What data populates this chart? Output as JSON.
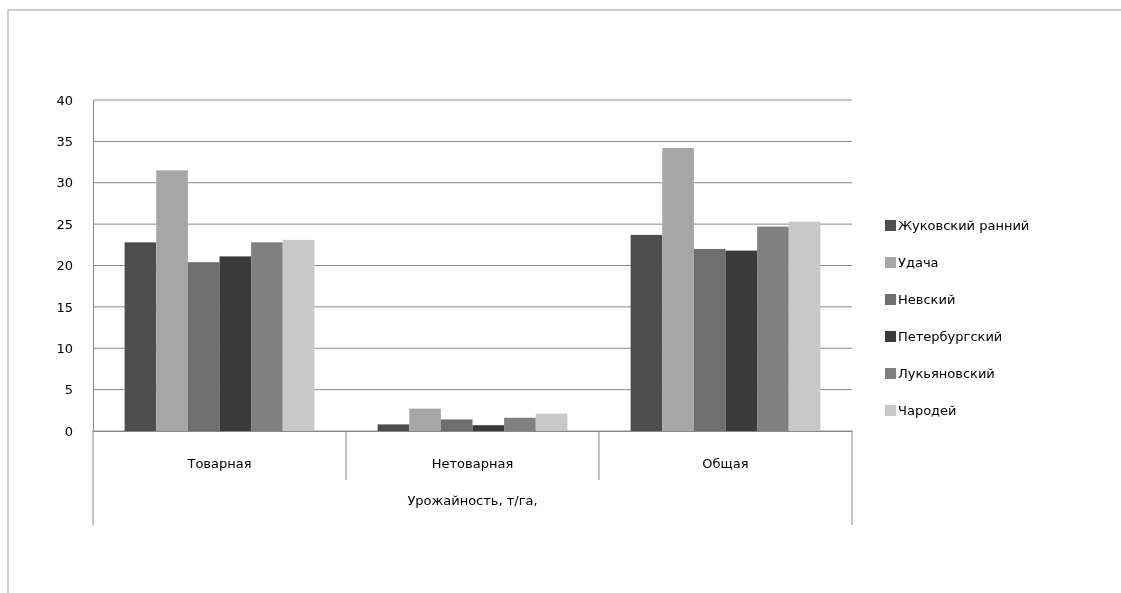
{
  "chart_data": {
    "type": "bar",
    "xlabel": "Урожайность, т/га,",
    "categories": [
      "Товарная",
      "Нетоварная",
      "Общая"
    ],
    "series": [
      {
        "name": "Жуковский ранний",
        "color": "#4d4d4d",
        "values": [
          22.8,
          0.8,
          23.7
        ]
      },
      {
        "name": "Удача",
        "color": "#a6a6a6",
        "values": [
          31.5,
          2.7,
          34.2
        ]
      },
      {
        "name": "Невский",
        "color": "#6e6e6e",
        "values": [
          20.4,
          1.4,
          22.0
        ]
      },
      {
        "name": "Петербургский",
        "color": "#3a3a3a",
        "values": [
          21.1,
          0.7,
          21.8
        ]
      },
      {
        "name": "Лукьяновский",
        "color": "#808080",
        "values": [
          22.8,
          1.6,
          24.7
        ]
      },
      {
        "name": "Чародей",
        "color": "#c8c8c8",
        "values": [
          23.1,
          2.1,
          25.3
        ]
      }
    ],
    "ylim": [
      0,
      40
    ],
    "yticks": [
      0,
      5,
      10,
      15,
      20,
      25,
      30,
      35,
      40
    ],
    "grid": "y",
    "legend": "right"
  }
}
